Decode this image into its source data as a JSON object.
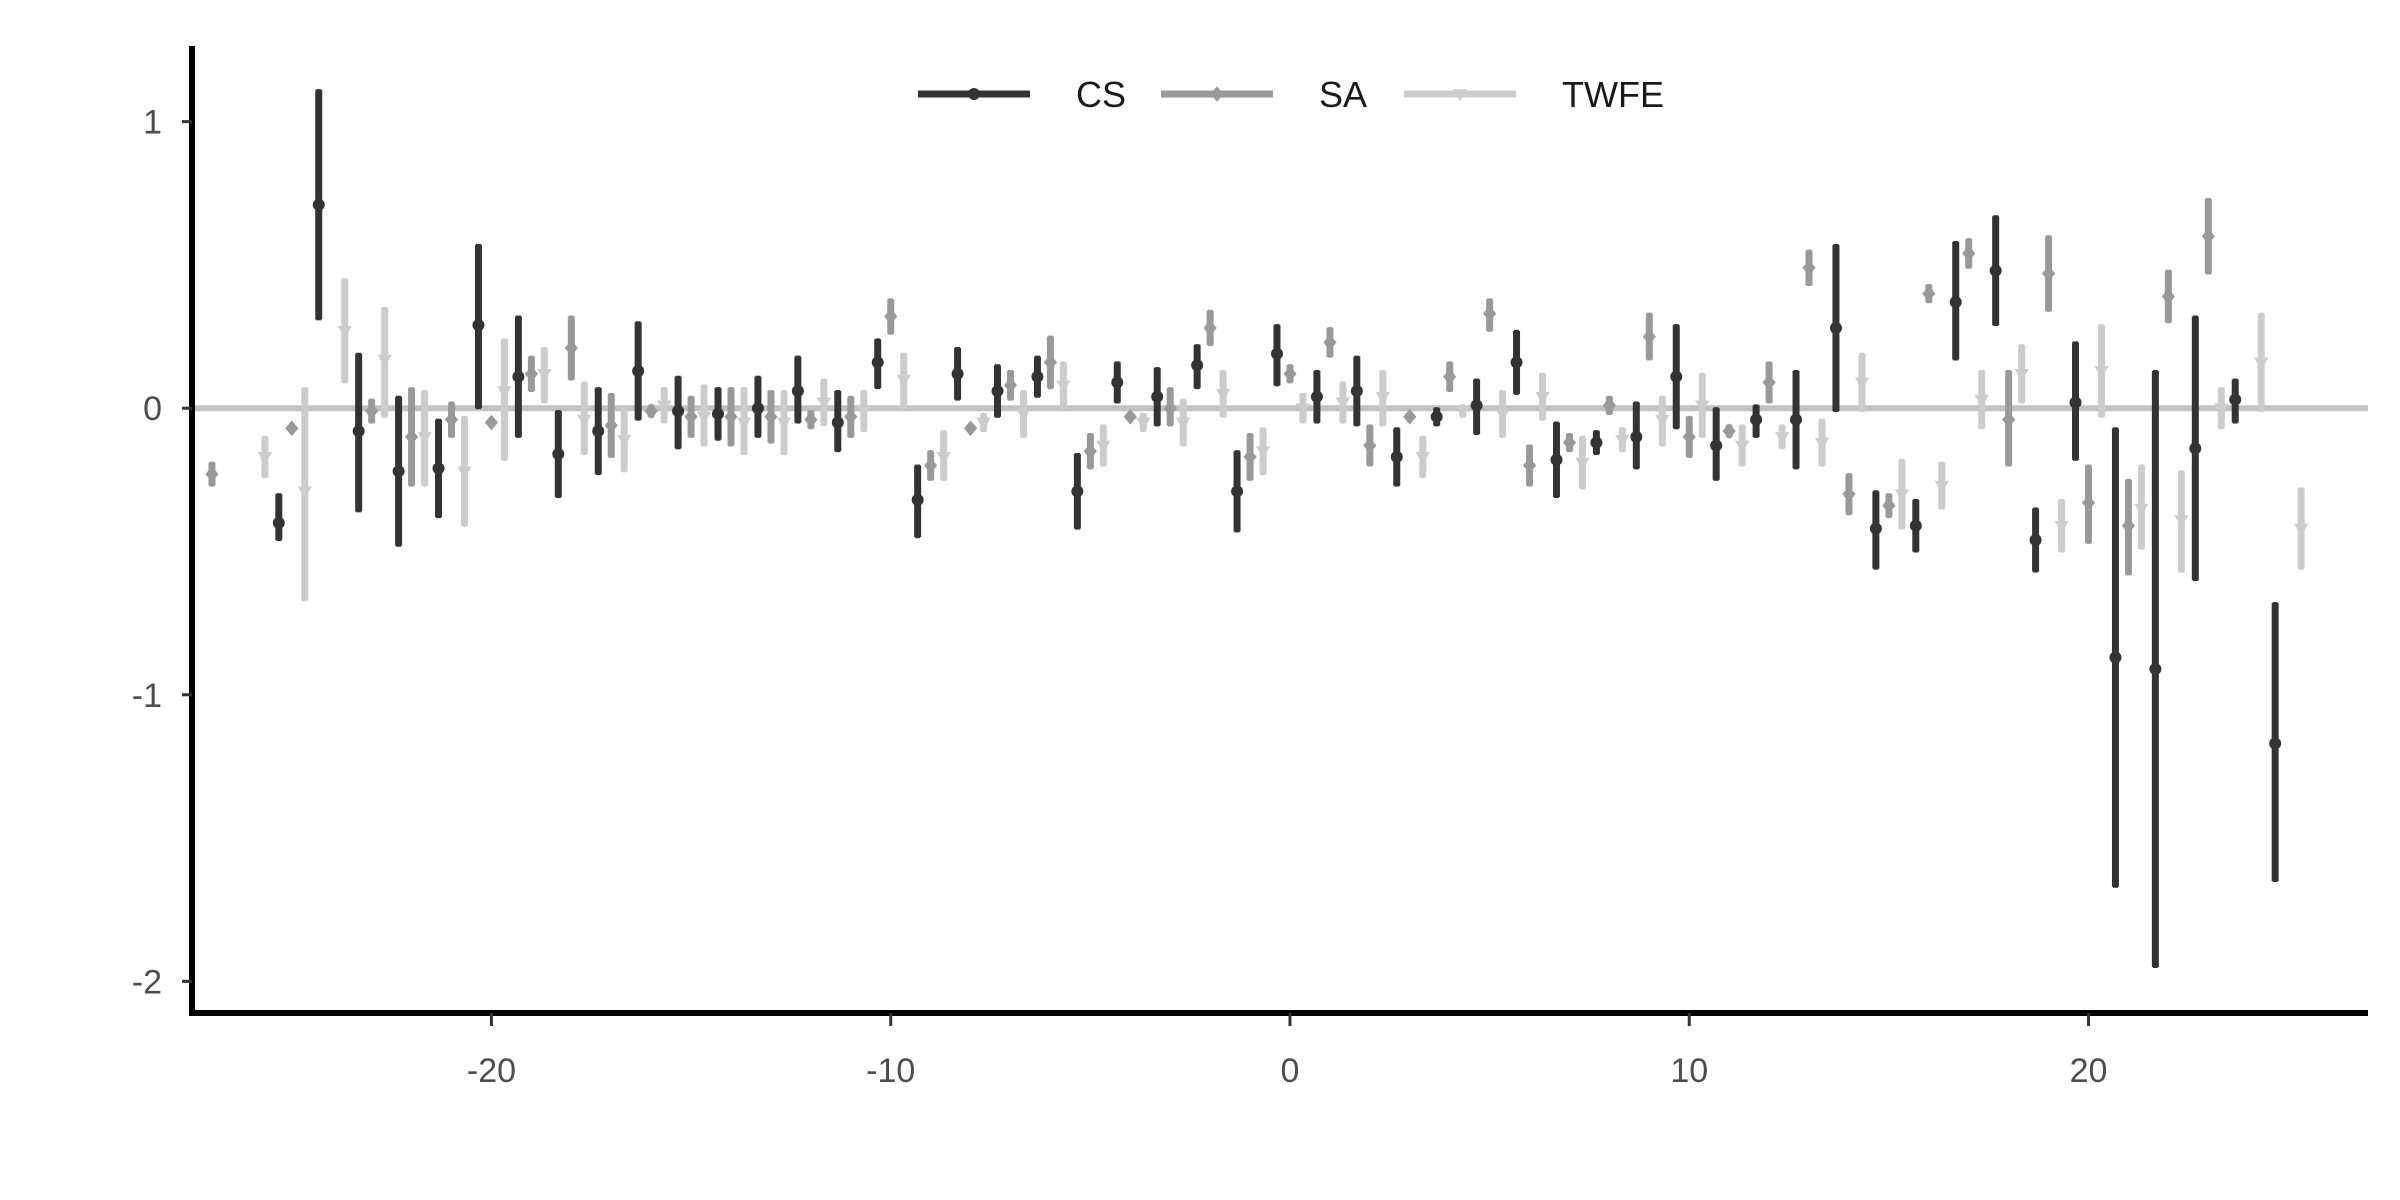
{
  "chart_data": {
    "type": "scatter",
    "title": "",
    "xlabel": "",
    "ylabel": "",
    "xlim": [
      -27.5,
      27
    ],
    "ylim": [
      -2.1,
      1.25
    ],
    "x_ticks": [
      -20,
      -10,
      0,
      10,
      20
    ],
    "y_ticks": [
      -2,
      -1,
      0,
      1
    ],
    "x_tick_labels": [
      "-20",
      "-10",
      "0",
      "10",
      "20"
    ],
    "y_tick_labels": [
      "-2",
      "-1",
      "0",
      "1"
    ],
    "grid": false,
    "legend_position": "top-center",
    "reference_line_y": 0,
    "series": [
      {
        "name": "CS",
        "color": "#333333",
        "marker": "circle",
        "points": [
          {
            "x": -25,
            "y": -0.4,
            "lo": -0.46,
            "hi": -0.3
          },
          {
            "x": -24,
            "y": 0.71,
            "lo": 0.31,
            "hi": 1.11
          },
          {
            "x": -23,
            "y": -0.08,
            "lo": -0.36,
            "hi": 0.19
          },
          {
            "x": -22,
            "y": -0.22,
            "lo": -0.48,
            "hi": 0.04
          },
          {
            "x": -21,
            "y": -0.21,
            "lo": -0.38,
            "hi": -0.04
          },
          {
            "x": -20,
            "y": 0.29,
            "lo": 0.0,
            "hi": 0.57
          },
          {
            "x": -19,
            "y": 0.11,
            "lo": -0.1,
            "hi": 0.32
          },
          {
            "x": -18,
            "y": -0.16,
            "lo": -0.31,
            "hi": -0.01
          },
          {
            "x": -17,
            "y": -0.08,
            "lo": -0.23,
            "hi": 0.07
          },
          {
            "x": -16,
            "y": 0.13,
            "lo": -0.04,
            "hi": 0.3
          },
          {
            "x": -15,
            "y": -0.01,
            "lo": -0.14,
            "hi": 0.11
          },
          {
            "x": -14,
            "y": -0.02,
            "lo": -0.11,
            "hi": 0.07
          },
          {
            "x": -13,
            "y": 0.0,
            "lo": -0.1,
            "hi": 0.11
          },
          {
            "x": -12,
            "y": 0.06,
            "lo": -0.05,
            "hi": 0.18
          },
          {
            "x": -11,
            "y": -0.05,
            "lo": -0.15,
            "hi": 0.06
          },
          {
            "x": -10,
            "y": 0.16,
            "lo": 0.07,
            "hi": 0.24
          },
          {
            "x": -9,
            "y": -0.32,
            "lo": -0.45,
            "hi": -0.2
          },
          {
            "x": -8,
            "y": 0.12,
            "lo": 0.03,
            "hi": 0.21
          },
          {
            "x": -7,
            "y": 0.06,
            "lo": -0.03,
            "hi": 0.15
          },
          {
            "x": -6,
            "y": 0.11,
            "lo": 0.04,
            "hi": 0.18
          },
          {
            "x": -5,
            "y": -0.29,
            "lo": -0.42,
            "hi": -0.16
          },
          {
            "x": -4,
            "y": 0.09,
            "lo": 0.02,
            "hi": 0.16
          },
          {
            "x": -3,
            "y": 0.04,
            "lo": -0.06,
            "hi": 0.14
          },
          {
            "x": -2,
            "y": 0.15,
            "lo": 0.07,
            "hi": 0.22
          },
          {
            "x": -1,
            "y": -0.29,
            "lo": -0.43,
            "hi": -0.15
          },
          {
            "x": 0,
            "y": 0.19,
            "lo": 0.08,
            "hi": 0.29
          },
          {
            "x": 1,
            "y": 0.04,
            "lo": -0.05,
            "hi": 0.13
          },
          {
            "x": 2,
            "y": 0.06,
            "lo": -0.06,
            "hi": 0.18
          },
          {
            "x": 3,
            "y": -0.17,
            "lo": -0.27,
            "hi": -0.07
          },
          {
            "x": 4,
            "y": -0.03,
            "lo": -0.06,
            "hi": 0.0
          },
          {
            "x": 5,
            "y": 0.01,
            "lo": -0.09,
            "hi": 0.1
          },
          {
            "x": 6,
            "y": 0.16,
            "lo": 0.05,
            "hi": 0.27
          },
          {
            "x": 7,
            "y": -0.18,
            "lo": -0.31,
            "hi": -0.05
          },
          {
            "x": 8,
            "y": -0.12,
            "lo": -0.16,
            "hi": -0.08
          },
          {
            "x": 9,
            "y": -0.1,
            "lo": -0.21,
            "hi": 0.02
          },
          {
            "x": 10,
            "y": 0.11,
            "lo": -0.07,
            "hi": 0.29
          },
          {
            "x": 11,
            "y": -0.13,
            "lo": -0.25,
            "hi": 0.0
          },
          {
            "x": 12,
            "y": -0.04,
            "lo": -0.1,
            "hi": 0.01
          },
          {
            "x": 13,
            "y": -0.04,
            "lo": -0.21,
            "hi": 0.13
          },
          {
            "x": 14,
            "y": 0.28,
            "lo": -0.01,
            "hi": 0.57
          },
          {
            "x": 15,
            "y": -0.42,
            "lo": -0.56,
            "hi": -0.29
          },
          {
            "x": 16,
            "y": -0.41,
            "lo": -0.5,
            "hi": -0.32
          },
          {
            "x": 17,
            "y": 0.37,
            "lo": 0.17,
            "hi": 0.58
          },
          {
            "x": 18,
            "y": 0.48,
            "lo": 0.29,
            "hi": 0.67
          },
          {
            "x": 19,
            "y": -0.46,
            "lo": -0.57,
            "hi": -0.35
          },
          {
            "x": 20,
            "y": 0.02,
            "lo": -0.18,
            "hi": 0.23
          },
          {
            "x": 21,
            "y": -0.87,
            "lo": -1.67,
            "hi": -0.07
          },
          {
            "x": 22,
            "y": -0.91,
            "lo": -1.95,
            "hi": 0.13
          },
          {
            "x": 23,
            "y": -0.14,
            "lo": -0.6,
            "hi": 0.32
          },
          {
            "x": 24,
            "y": 0.03,
            "lo": -0.05,
            "hi": 0.1
          },
          {
            "x": 25,
            "y": -1.17,
            "lo": -1.65,
            "hi": -0.68
          }
        ]
      },
      {
        "name": "SA",
        "color": "#999999",
        "marker": "diamond",
        "points": [
          {
            "x": -27,
            "y": -0.23,
            "lo": -0.27,
            "hi": -0.19
          },
          {
            "x": -25,
            "y": -0.07,
            "lo": -0.07,
            "hi": -0.07
          },
          {
            "x": -23,
            "y": -0.01,
            "lo": -0.05,
            "hi": 0.03
          },
          {
            "x": -22,
            "y": -0.1,
            "lo": -0.27,
            "hi": 0.07
          },
          {
            "x": -21,
            "y": -0.04,
            "lo": -0.1,
            "hi": 0.02
          },
          {
            "x": -20,
            "y": -0.05,
            "lo": -0.05,
            "hi": -0.05
          },
          {
            "x": -19,
            "y": 0.12,
            "lo": 0.06,
            "hi": 0.18
          },
          {
            "x": -18,
            "y": 0.21,
            "lo": 0.1,
            "hi": 0.32
          },
          {
            "x": -17,
            "y": -0.06,
            "lo": -0.17,
            "hi": 0.05
          },
          {
            "x": -16,
            "y": -0.01,
            "lo": -0.03,
            "hi": 0.01
          },
          {
            "x": -15,
            "y": -0.03,
            "lo": -0.1,
            "hi": 0.04
          },
          {
            "x": -14,
            "y": -0.03,
            "lo": -0.13,
            "hi": 0.07
          },
          {
            "x": -13,
            "y": -0.03,
            "lo": -0.12,
            "hi": 0.06
          },
          {
            "x": -12,
            "y": -0.04,
            "lo": -0.07,
            "hi": -0.01
          },
          {
            "x": -11,
            "y": -0.03,
            "lo": -0.1,
            "hi": 0.04
          },
          {
            "x": -10,
            "y": 0.32,
            "lo": 0.26,
            "hi": 0.38
          },
          {
            "x": -9,
            "y": -0.2,
            "lo": -0.25,
            "hi": -0.15
          },
          {
            "x": -8,
            "y": -0.07,
            "lo": -0.07,
            "hi": -0.07
          },
          {
            "x": -7,
            "y": 0.08,
            "lo": 0.03,
            "hi": 0.13
          },
          {
            "x": -6,
            "y": 0.16,
            "lo": 0.07,
            "hi": 0.25
          },
          {
            "x": -5,
            "y": -0.15,
            "lo": -0.21,
            "hi": -0.09
          },
          {
            "x": -4,
            "y": -0.03,
            "lo": -0.03,
            "hi": -0.03
          },
          {
            "x": -3,
            "y": 0.0,
            "lo": -0.06,
            "hi": 0.07
          },
          {
            "x": -2,
            "y": 0.28,
            "lo": 0.22,
            "hi": 0.34
          },
          {
            "x": -1,
            "y": -0.17,
            "lo": -0.25,
            "hi": -0.09
          },
          {
            "x": 0,
            "y": 0.12,
            "lo": 0.09,
            "hi": 0.15
          },
          {
            "x": 1,
            "y": 0.23,
            "lo": 0.18,
            "hi": 0.28
          },
          {
            "x": 2,
            "y": -0.13,
            "lo": -0.2,
            "hi": -0.06
          },
          {
            "x": 3,
            "y": -0.03,
            "lo": -0.03,
            "hi": -0.03
          },
          {
            "x": 4,
            "y": 0.11,
            "lo": 0.06,
            "hi": 0.16
          },
          {
            "x": 5,
            "y": 0.33,
            "lo": 0.27,
            "hi": 0.38
          },
          {
            "x": 6,
            "y": -0.2,
            "lo": -0.27,
            "hi": -0.13
          },
          {
            "x": 7,
            "y": -0.12,
            "lo": -0.15,
            "hi": -0.09
          },
          {
            "x": 8,
            "y": 0.01,
            "lo": -0.02,
            "hi": 0.04
          },
          {
            "x": 9,
            "y": 0.25,
            "lo": 0.17,
            "hi": 0.33
          },
          {
            "x": 10,
            "y": -0.1,
            "lo": -0.17,
            "hi": -0.03
          },
          {
            "x": 11,
            "y": -0.08,
            "lo": -0.1,
            "hi": -0.06
          },
          {
            "x": 12,
            "y": 0.09,
            "lo": 0.02,
            "hi": 0.16
          },
          {
            "x": 13,
            "y": 0.49,
            "lo": 0.43,
            "hi": 0.55
          },
          {
            "x": 14,
            "y": -0.3,
            "lo": -0.37,
            "hi": -0.23
          },
          {
            "x": 15,
            "y": -0.34,
            "lo": -0.38,
            "hi": -0.3
          },
          {
            "x": 16,
            "y": 0.4,
            "lo": 0.37,
            "hi": 0.43
          },
          {
            "x": 17,
            "y": 0.54,
            "lo": 0.49,
            "hi": 0.59
          },
          {
            "x": 18,
            "y": -0.04,
            "lo": -0.2,
            "hi": 0.13
          },
          {
            "x": 19,
            "y": 0.47,
            "lo": 0.34,
            "hi": 0.6
          },
          {
            "x": 20,
            "y": -0.33,
            "lo": -0.47,
            "hi": -0.2
          },
          {
            "x": 21,
            "y": -0.41,
            "lo": -0.58,
            "hi": -0.25
          },
          {
            "x": 22,
            "y": 0.39,
            "lo": 0.3,
            "hi": 0.48
          },
          {
            "x": 23,
            "y": 0.6,
            "lo": 0.47,
            "hi": 0.73
          }
        ]
      },
      {
        "name": "TWFE",
        "color": "#cccccc",
        "marker": "triangle-down",
        "points": [
          {
            "x": -26,
            "y": -0.17,
            "lo": -0.24,
            "hi": -0.1
          },
          {
            "x": -25,
            "y": -0.29,
            "lo": -0.67,
            "hi": 0.07
          },
          {
            "x": -24,
            "y": 0.27,
            "lo": 0.09,
            "hi": 0.45
          },
          {
            "x": -23,
            "y": 0.17,
            "lo": -0.03,
            "hi": 0.35
          },
          {
            "x": -22,
            "y": -0.1,
            "lo": -0.27,
            "hi": 0.06
          },
          {
            "x": -21,
            "y": -0.22,
            "lo": -0.41,
            "hi": -0.03
          },
          {
            "x": -20,
            "y": 0.06,
            "lo": -0.18,
            "hi": 0.24
          },
          {
            "x": -19,
            "y": 0.12,
            "lo": 0.02,
            "hi": 0.21
          },
          {
            "x": -18,
            "y": -0.04,
            "lo": -0.16,
            "hi": 0.09
          },
          {
            "x": -17,
            "y": -0.11,
            "lo": -0.22,
            "hi": 0.0
          },
          {
            "x": -16,
            "y": 0.01,
            "lo": -0.05,
            "hi": 0.07
          },
          {
            "x": -15,
            "y": -0.03,
            "lo": -0.13,
            "hi": 0.08
          },
          {
            "x": -14,
            "y": -0.05,
            "lo": -0.16,
            "hi": 0.07
          },
          {
            "x": -13,
            "y": -0.05,
            "lo": -0.16,
            "hi": 0.06
          },
          {
            "x": -12,
            "y": 0.02,
            "lo": -0.06,
            "hi": 0.1
          },
          {
            "x": -11,
            "y": -0.01,
            "lo": -0.08,
            "hi": 0.06
          },
          {
            "x": -10,
            "y": 0.1,
            "lo": 0.0,
            "hi": 0.19
          },
          {
            "x": -9,
            "y": -0.17,
            "lo": -0.25,
            "hi": -0.08
          },
          {
            "x": -8,
            "y": -0.05,
            "lo": -0.08,
            "hi": -0.02
          },
          {
            "x": -7,
            "y": -0.02,
            "lo": -0.1,
            "hi": 0.06
          },
          {
            "x": -6,
            "y": 0.08,
            "lo": 0.0,
            "hi": 0.16
          },
          {
            "x": -5,
            "y": -0.13,
            "lo": -0.2,
            "hi": -0.06
          },
          {
            "x": -4,
            "y": -0.05,
            "lo": -0.08,
            "hi": -0.02
          },
          {
            "x": -3,
            "y": -0.05,
            "lo": -0.13,
            "hi": 0.03
          },
          {
            "x": -2,
            "y": 0.05,
            "lo": -0.03,
            "hi": 0.13
          },
          {
            "x": -1,
            "y": -0.15,
            "lo": -0.23,
            "hi": -0.07
          },
          {
            "x": 0,
            "y": 0.0,
            "lo": -0.05,
            "hi": 0.05
          },
          {
            "x": 1,
            "y": 0.02,
            "lo": -0.05,
            "hi": 0.09
          },
          {
            "x": 2,
            "y": 0.04,
            "lo": -0.06,
            "hi": 0.13
          },
          {
            "x": 3,
            "y": -0.17,
            "lo": -0.24,
            "hi": -0.1
          },
          {
            "x": 4,
            "y": -0.01,
            "lo": -0.03,
            "hi": 0.01
          },
          {
            "x": 5,
            "y": -0.02,
            "lo": -0.1,
            "hi": 0.06
          },
          {
            "x": 6,
            "y": 0.04,
            "lo": -0.04,
            "hi": 0.12
          },
          {
            "x": 7,
            "y": -0.19,
            "lo": -0.28,
            "hi": -0.1
          },
          {
            "x": 8,
            "y": -0.11,
            "lo": -0.15,
            "hi": -0.07
          },
          {
            "x": 9,
            "y": -0.04,
            "lo": -0.13,
            "hi": 0.04
          },
          {
            "x": 10,
            "y": 0.01,
            "lo": -0.1,
            "hi": 0.12
          },
          {
            "x": 11,
            "y": -0.13,
            "lo": -0.2,
            "hi": -0.06
          },
          {
            "x": 12,
            "y": -0.1,
            "lo": -0.14,
            "hi": -0.06
          },
          {
            "x": 13,
            "y": -0.12,
            "lo": -0.2,
            "hi": -0.04
          },
          {
            "x": 14,
            "y": 0.09,
            "lo": -0.01,
            "hi": 0.19
          },
          {
            "x": 15,
            "y": -0.3,
            "lo": -0.42,
            "hi": -0.18
          },
          {
            "x": 16,
            "y": -0.27,
            "lo": -0.35,
            "hi": -0.19
          },
          {
            "x": 17,
            "y": 0.03,
            "lo": -0.07,
            "hi": 0.13
          },
          {
            "x": 18,
            "y": 0.12,
            "lo": 0.02,
            "hi": 0.22
          },
          {
            "x": 19,
            "y": -0.41,
            "lo": -0.5,
            "hi": -0.32
          },
          {
            "x": 20,
            "y": 0.13,
            "lo": -0.03,
            "hi": 0.29
          },
          {
            "x": 21,
            "y": -0.35,
            "lo": -0.49,
            "hi": -0.2
          },
          {
            "x": 22,
            "y": -0.39,
            "lo": -0.57,
            "hi": -0.22
          },
          {
            "x": 23,
            "y": 0.0,
            "lo": -0.07,
            "hi": 0.07
          },
          {
            "x": 24,
            "y": 0.16,
            "lo": -0.01,
            "hi": 0.33
          },
          {
            "x": 25,
            "y": -0.42,
            "lo": -0.56,
            "hi": -0.28
          }
        ]
      }
    ]
  }
}
